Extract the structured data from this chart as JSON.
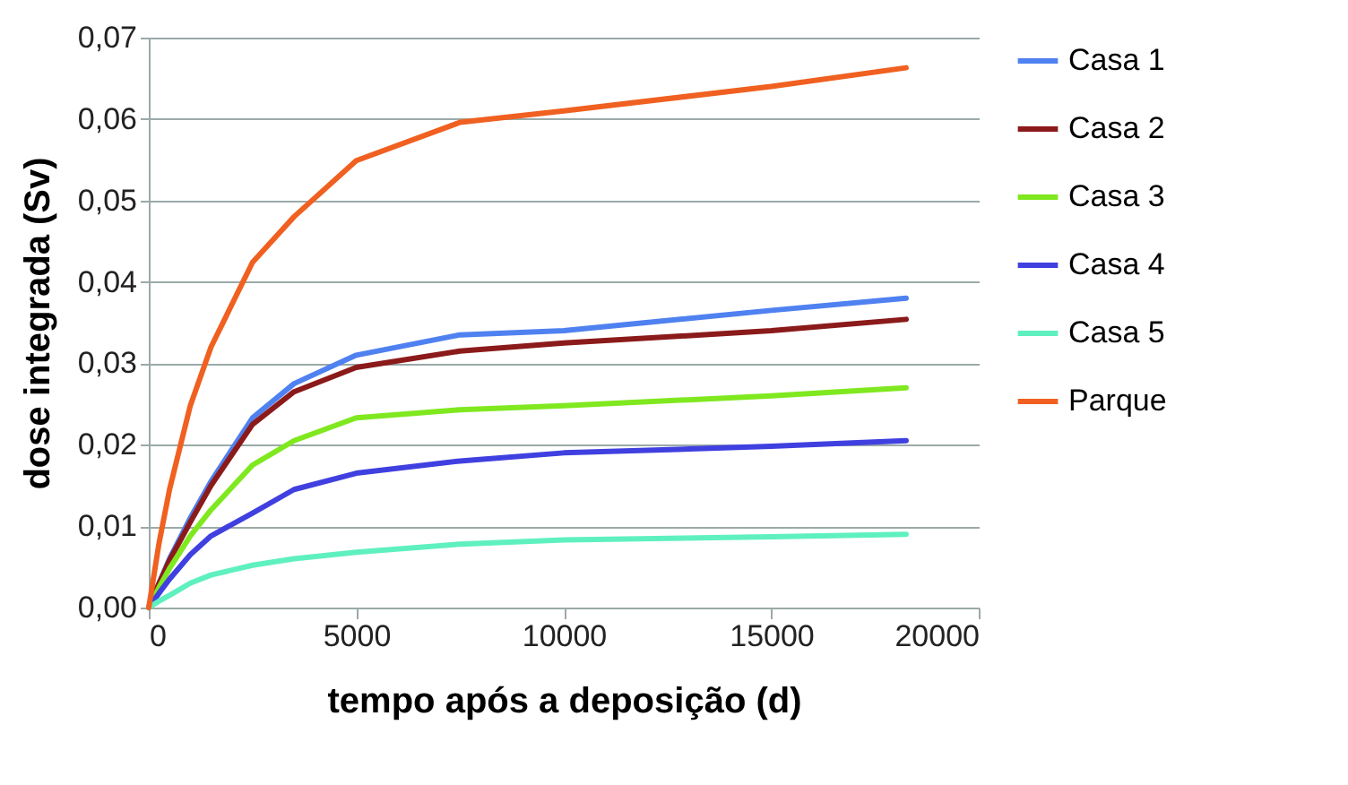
{
  "chart_data": {
    "type": "line",
    "xlabel": "tempo após a deposição (d)",
    "ylabel": "dose integrada (Sv)",
    "x": [
      0,
      250,
      500,
      1000,
      1500,
      2500,
      3500,
      5000,
      7500,
      10000,
      15000,
      18250
    ],
    "series": [
      {
        "name": "Casa 1",
        "color": "#4f81f0",
        "values": [
          0,
          0.003,
          0.006,
          0.011,
          0.0155,
          0.0233,
          0.0275,
          0.031,
          0.0335,
          0.034,
          0.0365,
          0.038
        ]
      },
      {
        "name": "Casa 2",
        "color": "#8b1a1a",
        "values": [
          0,
          0.003,
          0.0058,
          0.0105,
          0.015,
          0.0225,
          0.0265,
          0.0295,
          0.0315,
          0.0325,
          0.034,
          0.0354
        ]
      },
      {
        "name": "Casa 3",
        "color": "#7fe81f",
        "values": [
          0,
          0.0025,
          0.0048,
          0.0088,
          0.012,
          0.0175,
          0.0205,
          0.0233,
          0.0243,
          0.0248,
          0.026,
          0.027
        ]
      },
      {
        "name": "Casa 4",
        "color": "#4040e0",
        "values": [
          0,
          0.0018,
          0.0035,
          0.0065,
          0.0088,
          0.0116,
          0.0145,
          0.0165,
          0.018,
          0.019,
          0.0198,
          0.0205
        ]
      },
      {
        "name": "Casa 5",
        "color": "#5ff0c0",
        "values": [
          0,
          0.0008,
          0.0015,
          0.003,
          0.004,
          0.0052,
          0.006,
          0.0068,
          0.0078,
          0.0083,
          0.0087,
          0.009
        ]
      },
      {
        "name": "Parque",
        "color": "#f06020",
        "values": [
          0,
          0.008,
          0.0145,
          0.0248,
          0.032,
          0.0424,
          0.048,
          0.0549,
          0.0596,
          0.061,
          0.064,
          0.0663
        ]
      }
    ],
    "xlim": [
      0,
      20000
    ],
    "xticks": [
      0,
      5000,
      10000,
      15000,
      20000
    ],
    "ylim": [
      0,
      0.07
    ],
    "yticks": [
      {
        "value": 0,
        "label": "0,00"
      },
      {
        "value": 0.01,
        "label": "0,01"
      },
      {
        "value": 0.02,
        "label": "0,02"
      },
      {
        "value": 0.03,
        "label": "0,03"
      },
      {
        "value": 0.04,
        "label": "0,04"
      },
      {
        "value": 0.05,
        "label": "0,05"
      },
      {
        "value": 0.06,
        "label": "0,06"
      },
      {
        "value": 0.07,
        "label": "0,07"
      }
    ],
    "grid": "y",
    "legend": "right",
    "marker": "none",
    "line_style": "solid"
  }
}
